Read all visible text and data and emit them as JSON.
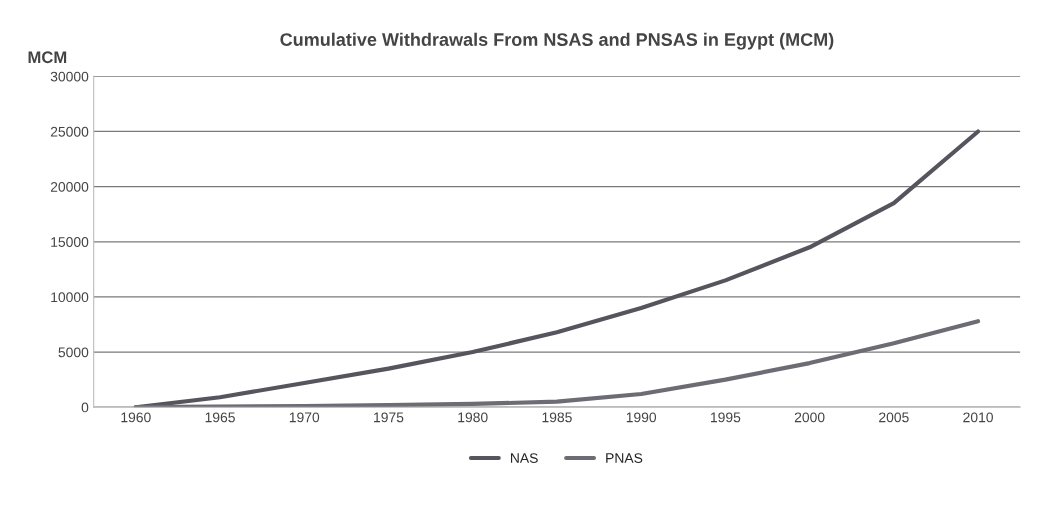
{
  "chart_data": {
    "type": "line",
    "title": "Cumulative Withdrawals From NSAS and PNSAS in Egypt (MCM)",
    "ylabel": "MCM",
    "categories": [
      "1960",
      "1965",
      "1970",
      "1975",
      "1980",
      "1985",
      "1990",
      "1995",
      "2000",
      "2005",
      "2010"
    ],
    "series": [
      {
        "name": "NAS",
        "color": "#55555e",
        "values": [
          0,
          900,
          2200,
          3500,
          5000,
          6800,
          9000,
          11500,
          14500,
          18500,
          25000
        ]
      },
      {
        "name": "PNAS",
        "color": "#6c6c74",
        "values": [
          0,
          50,
          100,
          200,
          300,
          500,
          1200,
          2500,
          4000,
          5800,
          7800
        ]
      }
    ],
    "ylim": [
      0,
      30000
    ],
    "yticks": [
      0,
      5000,
      10000,
      15000,
      20000,
      25000,
      30000
    ],
    "grid": "y",
    "legend": "bottom",
    "marker": "none",
    "line_style": "solid"
  }
}
